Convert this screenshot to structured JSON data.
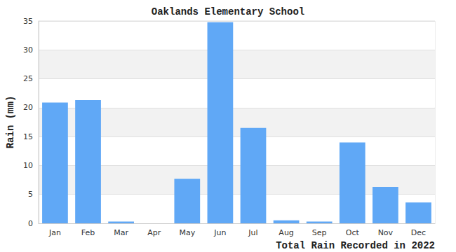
{
  "chart_data": {
    "type": "bar",
    "title": "Oaklands Elementary School",
    "x_label": "Total Rain Recorded in 2022",
    "y_label": "Rain (mm)",
    "categories": [
      "Jan",
      "Feb",
      "Mar",
      "Apr",
      "May",
      "Jun",
      "Jul",
      "Aug",
      "Sep",
      "Oct",
      "Nov",
      "Dec"
    ],
    "values": [
      20.9,
      21.3,
      0.3,
      0,
      7.7,
      34.8,
      16.5,
      0.5,
      0.3,
      14,
      6.3,
      3.6
    ],
    "color": "#60a8f6",
    "ylim": [
      0,
      35
    ],
    "yticks": [
      0,
      5,
      10,
      15,
      20,
      25,
      30,
      35
    ],
    "grid": true
  }
}
